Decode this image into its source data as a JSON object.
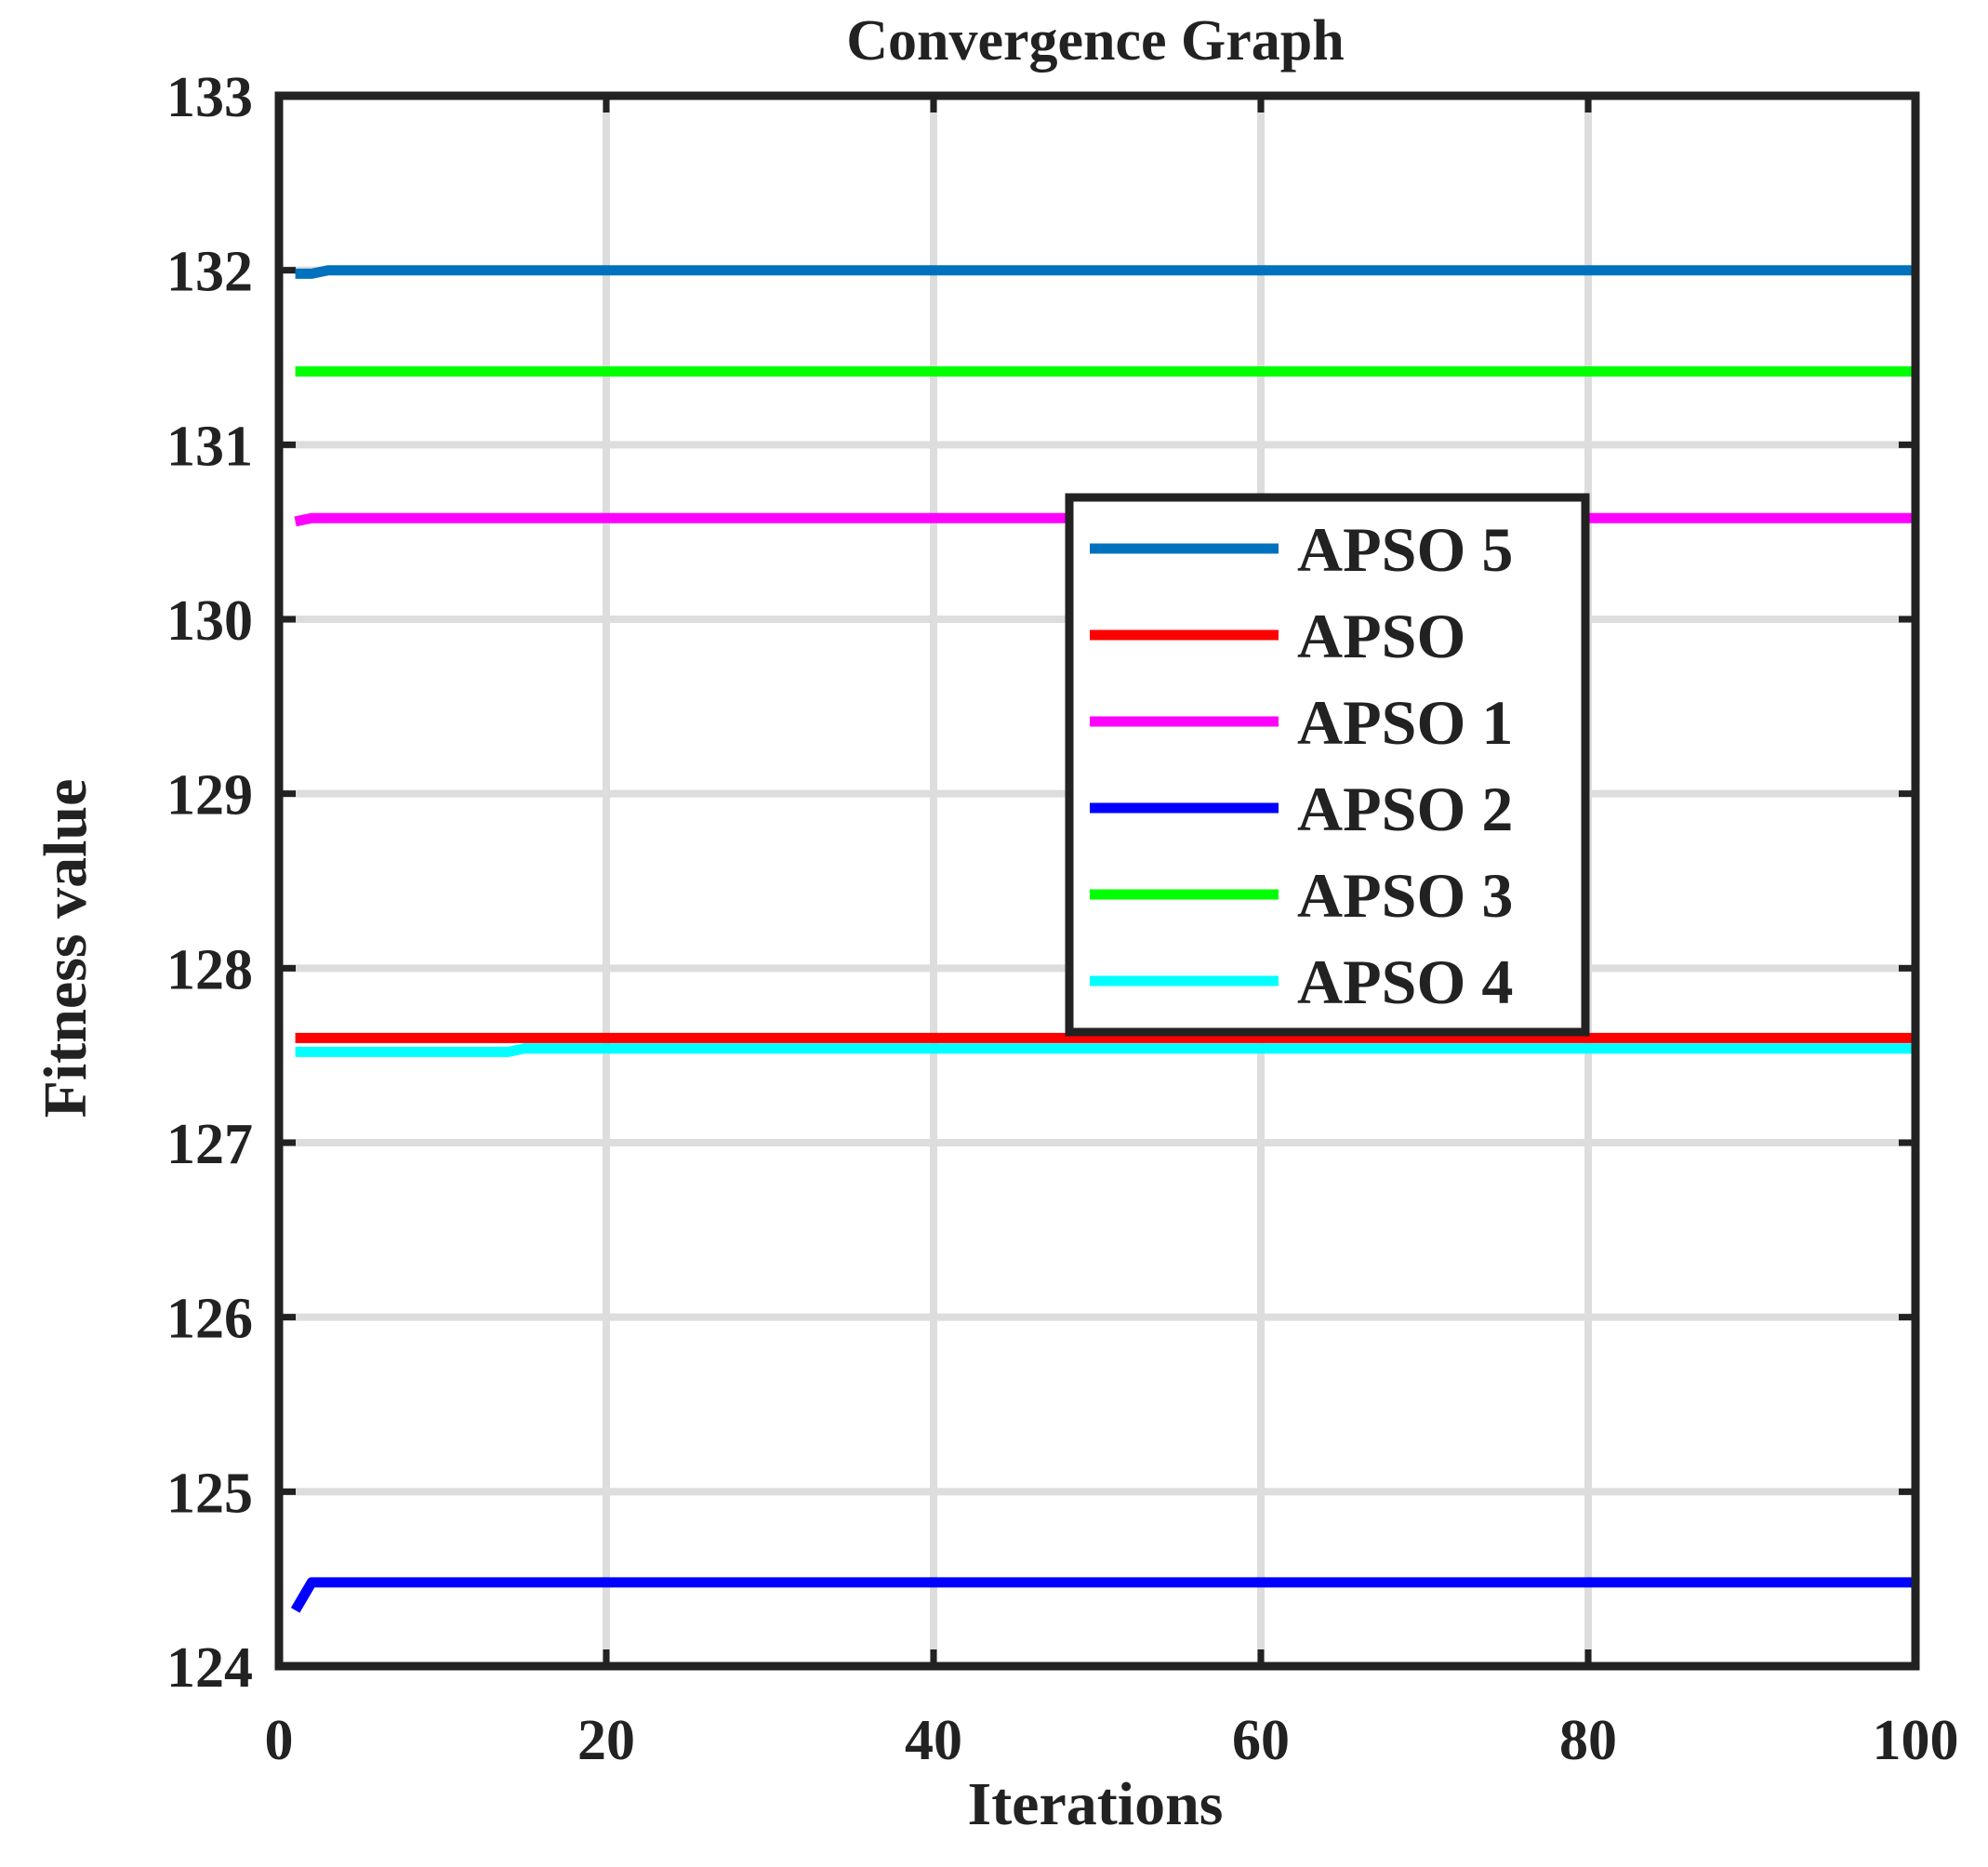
{
  "chart_data": {
    "type": "line",
    "title": "Convergence Graph",
    "xlabel": "Iterations",
    "ylabel": "Fitness value",
    "xlim": [
      0,
      100
    ],
    "ylim": [
      124,
      133
    ],
    "x_ticks": [
      0,
      20,
      40,
      60,
      80,
      100
    ],
    "y_ticks": [
      124,
      125,
      126,
      127,
      128,
      129,
      130,
      131,
      132,
      133
    ],
    "grid": true,
    "legend_position": "center-right",
    "series": [
      {
        "name": "APSO 5",
        "color": "#0072BD",
        "x": [
          1,
          2,
          3,
          100
        ],
        "y": [
          131.98,
          131.98,
          132.0,
          132.0
        ]
      },
      {
        "name": "APSO",
        "color": "#FF0000",
        "x": [
          1,
          2,
          100
        ],
        "y": [
          127.6,
          127.6,
          127.6
        ]
      },
      {
        "name": "APSO 1",
        "color": "#FF00FF",
        "x": [
          1,
          2,
          100
        ],
        "y": [
          130.56,
          130.58,
          130.58
        ]
      },
      {
        "name": "APSO 2",
        "color": "#0000FF",
        "x": [
          1,
          2,
          100
        ],
        "y": [
          124.32,
          124.48,
          124.48
        ]
      },
      {
        "name": "APSO 3",
        "color": "#00FF00",
        "x": [
          1,
          100
        ],
        "y": [
          131.42,
          131.42
        ]
      },
      {
        "name": "APSO 4",
        "color": "#00FFFF",
        "x": [
          1,
          14,
          15,
          100
        ],
        "y": [
          127.52,
          127.52,
          127.54,
          127.54
        ]
      }
    ]
  }
}
